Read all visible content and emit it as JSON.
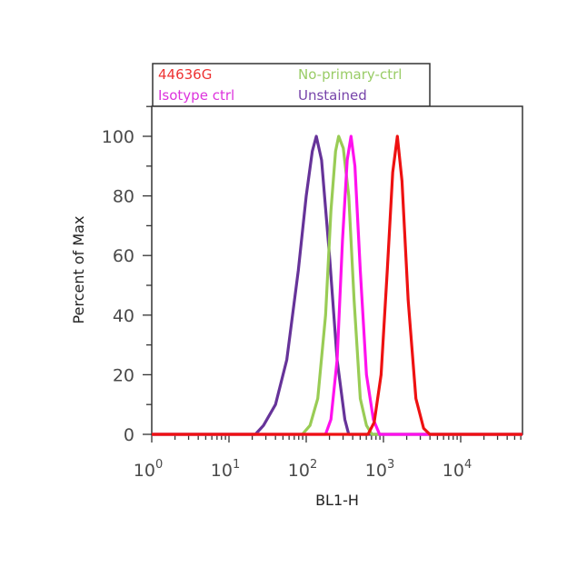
{
  "chart_data": {
    "type": "line",
    "title": "",
    "xlabel": "BL1-H",
    "ylabel": "Percent of Max",
    "xscale": "log",
    "xlim": [
      1,
      63000
    ],
    "ylim": [
      0,
      110
    ],
    "x_ticks": [
      {
        "base": "10",
        "exp": "0",
        "value": 1
      },
      {
        "base": "10",
        "exp": "1",
        "value": 10
      },
      {
        "base": "10",
        "exp": "2",
        "value": 100
      },
      {
        "base": "10",
        "exp": "3",
        "value": 1000
      },
      {
        "base": "10",
        "exp": "4",
        "value": 10000
      }
    ],
    "y_ticks": [
      "0",
      "20",
      "40",
      "60",
      "80",
      "100"
    ],
    "legend_position": "top",
    "series": [
      {
        "name": "Unstained",
        "color": "#663399",
        "x": [
          1,
          22,
          28,
          40,
          56,
          79,
          100,
          120,
          135,
          158,
          200,
          251,
          316,
          355,
          63000
        ],
        "y": [
          0,
          0,
          3,
          10,
          25,
          55,
          80,
          95,
          100,
          92,
          60,
          25,
          5,
          0,
          0
        ]
      },
      {
        "name": "No-primary-ctrl",
        "color": "#99cc55",
        "x": [
          1,
          89,
          112,
          141,
          178,
          209,
          240,
          263,
          302,
          355,
          417,
          501,
          603,
          708,
          63000
        ],
        "y": [
          0,
          0,
          3,
          12,
          40,
          75,
          95,
          100,
          96,
          80,
          45,
          12,
          3,
          0,
          0
        ]
      },
      {
        "name": "Isotype ctrl",
        "color": "#ff11ee",
        "x": [
          1,
          178,
          209,
          251,
          295,
          339,
          380,
          427,
          501,
          603,
          741,
          891,
          63000
        ],
        "y": [
          0,
          0,
          5,
          25,
          65,
          92,
          100,
          90,
          55,
          20,
          5,
          0,
          0
        ]
      },
      {
        "name": "44636G",
        "color": "#ee1111",
        "x": [
          1,
          631,
          759,
          933,
          1122,
          1318,
          1514,
          1738,
          2089,
          2630,
          3311,
          3981,
          63000
        ],
        "y": [
          0,
          0,
          4,
          20,
          55,
          88,
          100,
          85,
          45,
          12,
          2,
          0,
          0
        ]
      }
    ],
    "legend": [
      {
        "label": "44636G",
        "color": "#ee3333"
      },
      {
        "label": "No-primary-ctrl",
        "color": "#99cc66"
      },
      {
        "label": "Isotype ctrl",
        "color": "#dd33dd"
      },
      {
        "label": "Unstained",
        "color": "#7744aa"
      }
    ]
  }
}
